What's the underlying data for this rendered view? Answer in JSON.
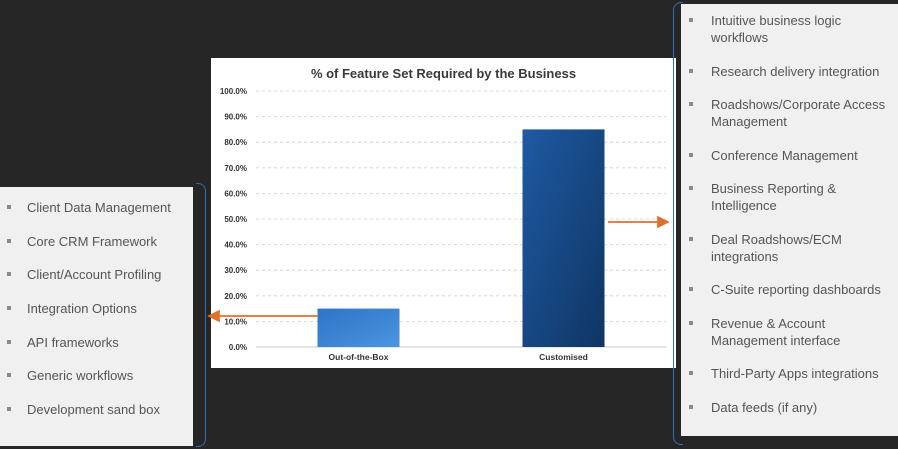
{
  "chart_data": {
    "type": "bar",
    "title": "% of Feature Set Required by the Business",
    "categories": [
      "Out-of-the-Box",
      "Customised"
    ],
    "values": [
      15.0,
      85.0
    ],
    "ylim": [
      0,
      100
    ],
    "yticks": [
      "0.0%",
      "10.0%",
      "20.0%",
      "30.0%",
      "40.0%",
      "50.0%",
      "60.0%",
      "70.0%",
      "80.0%",
      "90.0%",
      "100.0%"
    ],
    "xlabel": "",
    "ylabel": "",
    "grid": true,
    "bar_colors": [
      "#3f87d6",
      "#1a4b8c"
    ],
    "arrow_color": "#e0702a"
  },
  "left_features": [
    "Client Data Management",
    "Core CRM Framework",
    "Client/Account Profiling",
    "Integration Options",
    "API frameworks",
    "Generic workflows",
    "Development sand box"
  ],
  "right_features": [
    "Intuitive business logic workflows",
    "Research delivery integration",
    "Roadshows/Corporate Access Management",
    "Conference Management",
    "Business Reporting & Intelligence",
    "Deal Roadshows/ECM integrations",
    "C-Suite reporting dashboards",
    "Revenue & Account Management interface",
    "Third-Party Apps integrations",
    "Data feeds (if any)"
  ]
}
